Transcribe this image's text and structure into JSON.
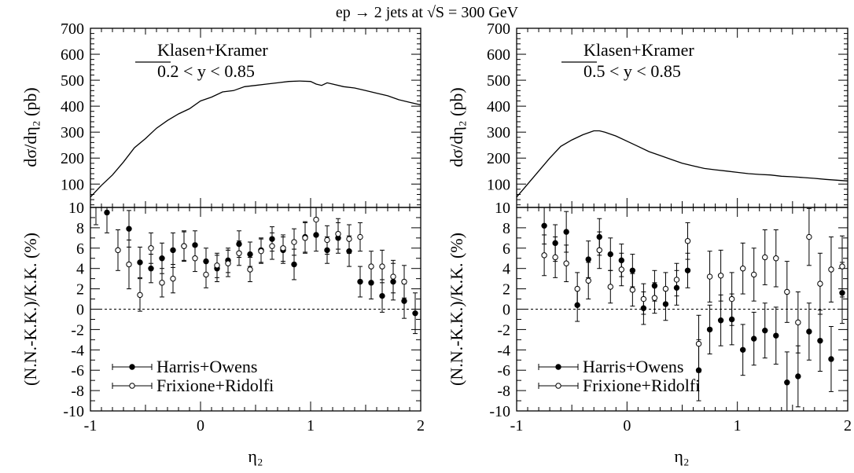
{
  "title": "ep → 2 jets at √S = 300 GeV",
  "colors": {
    "line": "#000000",
    "filled_marker": "#000000",
    "open_marker": "#ffffff",
    "zero_line": "#000000"
  },
  "chart_data": [
    {
      "panel": "left",
      "top": {
        "type": "line",
        "ylabel": "dσ/dη₂ (pb)",
        "ylim": [
          10,
          700
        ],
        "yticks": [
          100,
          200,
          300,
          400,
          500,
          600,
          700
        ],
        "xlim": [
          -1,
          2
        ],
        "legend": {
          "line_label": "Klasen+Kramer",
          "cut_label": "0.2 < y < 0.85",
          "placement": "top-left"
        },
        "series": [
          {
            "name": "Klasen+Kramer",
            "x": [
              -1.0,
              -0.9,
              -0.8,
              -0.7,
              -0.6,
              -0.5,
              -0.4,
              -0.3,
              -0.2,
              -0.1,
              0.0,
              0.1,
              0.2,
              0.3,
              0.4,
              0.5,
              0.6,
              0.7,
              0.8,
              0.9,
              1.0,
              1.05,
              1.1,
              1.15,
              1.2,
              1.3,
              1.4,
              1.5,
              1.6,
              1.7,
              1.8,
              1.9,
              2.0
            ],
            "y": [
              50,
              95,
              135,
              185,
              240,
              275,
              315,
              345,
              370,
              390,
              420,
              435,
              455,
              460,
              475,
              480,
              485,
              490,
              495,
              497,
              495,
              485,
              480,
              490,
              485,
              475,
              470,
              460,
              450,
              440,
              425,
              415,
              405
            ]
          }
        ]
      },
      "bottom": {
        "type": "scatter",
        "ylabel": "(N.N.-K.K.)/K.K. (%)",
        "xlabel": "η₂",
        "ylim": [
          -10,
          10
        ],
        "yticks": [
          -10,
          -8,
          -6,
          -4,
          -2,
          0,
          2,
          4,
          6,
          8,
          10
        ],
        "xlim": [
          -1,
          2
        ],
        "xticks": [
          -1,
          0,
          1,
          2
        ],
        "reference_line": 0,
        "legend_placement": "bottom-left",
        "series": [
          {
            "name": "Harris+Owens",
            "marker": "filled",
            "x": [
              -0.95,
              -0.85,
              -0.65,
              -0.55,
              -0.45,
              -0.35,
              -0.25,
              -0.15,
              -0.05,
              0.05,
              0.15,
              0.25,
              0.35,
              0.45,
              0.55,
              0.65,
              0.75,
              0.85,
              0.95,
              1.05,
              1.15,
              1.25,
              1.35,
              1.45,
              1.55,
              1.65,
              1.75,
              1.85,
              1.95
            ],
            "y": [
              10.3,
              9.5,
              7.9,
              4.6,
              4.0,
              5.0,
              5.8,
              6.2,
              6.3,
              4.7,
              4.0,
              4.8,
              6.4,
              5.4,
              5.8,
              6.9,
              5.8,
              4.4,
              7.1,
              7.3,
              5.8,
              7.0,
              5.7,
              2.7,
              2.6,
              1.3,
              2.7,
              0.8,
              -0.4
            ],
            "err": [
              2.0,
              2.0,
              1.8,
              1.5,
              1.4,
              1.5,
              1.7,
              1.4,
              1.4,
              1.3,
              1.3,
              1.2,
              1.3,
              1.2,
              1.2,
              1.2,
              1.3,
              1.5,
              1.5,
              1.6,
              1.3,
              1.5,
              1.5,
              1.5,
              1.6,
              1.6,
              1.8,
              1.7,
              2.0
            ]
          },
          {
            "name": "Frixione+Ridolfi",
            "marker": "open",
            "x": [
              -0.75,
              -0.65,
              -0.55,
              -0.45,
              -0.35,
              -0.25,
              -0.15,
              -0.05,
              0.05,
              0.15,
              0.25,
              0.35,
              0.45,
              0.55,
              0.65,
              0.75,
              0.85,
              0.95,
              1.05,
              1.15,
              1.25,
              1.35,
              1.45,
              1.55,
              1.65,
              1.75,
              1.85
            ],
            "y": [
              5.8,
              4.4,
              1.4,
              6.0,
              2.6,
              3.0,
              6.2,
              5.0,
              3.4,
              4.3,
              4.5,
              5.5,
              3.9,
              5.7,
              6.2,
              6.0,
              6.6,
              7.0,
              8.8,
              6.8,
              7.4,
              6.9,
              7.1,
              4.2,
              4.2,
              3.2,
              2.7
            ],
            "err": [
              2.0,
              2.4,
              1.6,
              1.5,
              1.4,
              1.4,
              1.5,
              1.3,
              1.3,
              1.2,
              1.3,
              1.2,
              1.2,
              1.2,
              1.3,
              1.3,
              1.3,
              1.5,
              1.6,
              1.4,
              1.5,
              1.4,
              1.4,
              1.5,
              1.6,
              1.6,
              1.6
            ]
          }
        ]
      }
    },
    {
      "panel": "right",
      "top": {
        "type": "line",
        "ylabel": "dσ/dη₂ (pb)",
        "ylim": [
          10,
          700
        ],
        "yticks": [
          100,
          200,
          300,
          400,
          500,
          600,
          700
        ],
        "xlim": [
          -1,
          2
        ],
        "legend": {
          "line_label": "Klasen+Kramer",
          "cut_label": "0.5 < y < 0.85",
          "placement": "top-left"
        },
        "series": [
          {
            "name": "Klasen+Kramer",
            "x": [
              -1.0,
              -0.9,
              -0.8,
              -0.7,
              -0.6,
              -0.5,
              -0.4,
              -0.3,
              -0.25,
              -0.2,
              -0.1,
              0.0,
              0.1,
              0.2,
              0.3,
              0.4,
              0.5,
              0.6,
              0.7,
              0.8,
              0.9,
              1.0,
              1.1,
              1.2,
              1.3,
              1.4,
              1.5,
              1.6,
              1.7,
              1.8,
              1.9,
              2.0
            ],
            "y": [
              50,
              100,
              150,
              200,
              245,
              270,
              290,
              305,
              305,
              300,
              285,
              265,
              245,
              225,
              210,
              195,
              180,
              170,
              160,
              155,
              150,
              145,
              140,
              137,
              135,
              130,
              128,
              125,
              122,
              118,
              115,
              112
            ]
          }
        ]
      },
      "bottom": {
        "type": "scatter",
        "ylabel": "(N.N.-K.K.)/K.K. (%)",
        "xlabel": "η₂",
        "ylim": [
          -10,
          10
        ],
        "yticks": [
          -10,
          -8,
          -6,
          -4,
          -2,
          0,
          2,
          4,
          6,
          8,
          10
        ],
        "xlim": [
          -1,
          2
        ],
        "xticks": [
          -1,
          0,
          1,
          2
        ],
        "reference_line": 0,
        "legend_placement": "bottom-left",
        "series": [
          {
            "name": "Harris+Owens",
            "marker": "filled",
            "x": [
              -0.75,
              -0.65,
              -0.55,
              -0.45,
              -0.35,
              -0.25,
              -0.15,
              -0.05,
              0.05,
              0.15,
              0.25,
              0.35,
              0.45,
              0.55,
              0.65,
              0.75,
              0.85,
              0.95,
              1.05,
              1.15,
              1.25,
              1.35,
              1.45,
              1.55,
              1.65,
              1.75,
              1.85,
              1.95
            ],
            "y": [
              8.2,
              6.5,
              7.6,
              0.4,
              4.9,
              7.1,
              5.4,
              4.8,
              3.8,
              0.1,
              2.3,
              0.5,
              2.1,
              3.8,
              -6.0,
              -2.0,
              -1.1,
              -1.0,
              -4.0,
              -2.9,
              -2.1,
              -2.6,
              -7.2,
              -6.6,
              -2.2,
              -3.1,
              -4.9,
              1.6
            ],
            "err": [
              1.8,
              1.8,
              2.0,
              1.6,
              1.8,
              1.8,
              1.6,
              1.6,
              1.6,
              1.6,
              1.5,
              1.6,
              1.7,
              1.7,
              3.0,
              2.4,
              2.5,
              2.5,
              2.5,
              2.6,
              2.7,
              2.8,
              3.0,
              3.0,
              2.8,
              3.0,
              3.2,
              3.0
            ]
          },
          {
            "name": "Frixione+Ridolfi",
            "marker": "open",
            "x": [
              -0.75,
              -0.65,
              -0.55,
              -0.45,
              -0.35,
              -0.25,
              -0.15,
              -0.05,
              0.05,
              0.15,
              0.25,
              0.35,
              0.45,
              0.55,
              0.65,
              0.75,
              0.85,
              0.95,
              1.05,
              1.15,
              1.25,
              1.35,
              1.45,
              1.55,
              1.65,
              1.75,
              1.85,
              1.95
            ],
            "y": [
              5.3,
              5.1,
              4.5,
              2.0,
              2.8,
              5.8,
              2.2,
              3.9,
              1.9,
              1.0,
              1.1,
              2.0,
              2.9,
              6.7,
              -3.4,
              3.2,
              3.3,
              1.0,
              4.0,
              3.4,
              5.1,
              5.0,
              1.7,
              -1.3,
              7.1,
              2.5,
              3.9,
              4.2
            ],
            "err": [
              2.0,
              2.0,
              1.8,
              1.6,
              1.8,
              1.8,
              1.6,
              1.6,
              1.6,
              1.5,
              1.5,
              1.6,
              1.6,
              1.8,
              2.8,
              2.5,
              2.5,
              2.6,
              2.5,
              2.6,
              2.7,
              2.8,
              3.0,
              3.0,
              2.8,
              3.0,
              3.2,
              3.0
            ]
          }
        ]
      }
    }
  ]
}
